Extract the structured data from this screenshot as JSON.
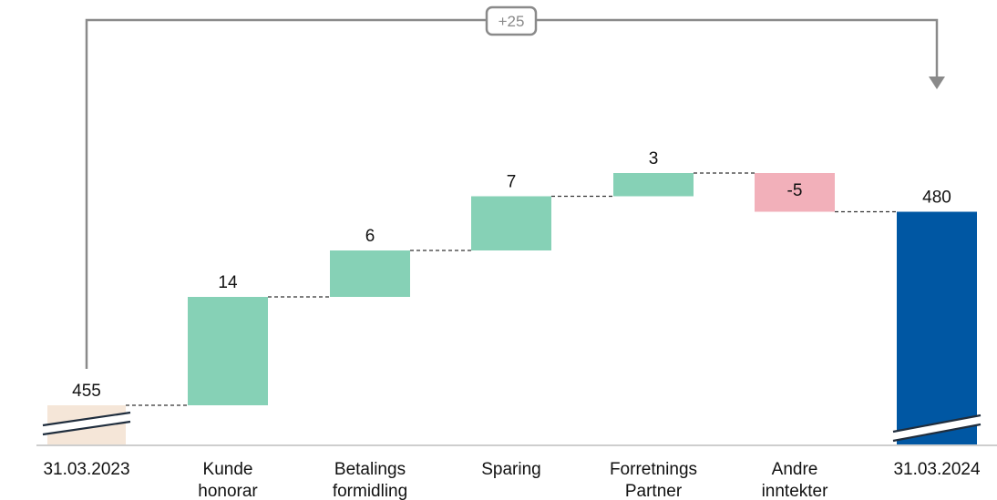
{
  "chart_data": {
    "type": "waterfall",
    "categories": [
      [
        "31.03.2023"
      ],
      [
        "Kunde",
        "honorar"
      ],
      [
        "Betalings",
        "formidling"
      ],
      [
        "Sparing"
      ],
      [
        "Forretnings",
        "Partner"
      ],
      [
        "Andre",
        "inntekter"
      ],
      [
        "31.03.2024"
      ]
    ],
    "start_value": 455,
    "changes": [
      14,
      6,
      7,
      3,
      -5
    ],
    "end_value": 480,
    "labels": [
      "455",
      "14",
      "6",
      "7",
      "3",
      "-5",
      "480"
    ],
    "total_change_label": "+25",
    "axis_break": true,
    "colors": {
      "start": "#f5e6d8",
      "increase": "#86d1b6",
      "decrease": "#f2b0ba",
      "end": "#0057a3",
      "connector": "#333333",
      "bracket": "#8a8a8a"
    }
  }
}
